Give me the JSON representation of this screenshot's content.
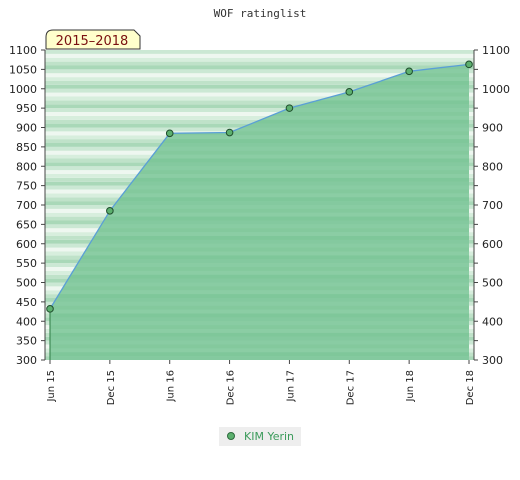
{
  "chart_data": {
    "type": "area",
    "title": "WOF ratinglist",
    "badge": "2015–2018",
    "categories": [
      "Jun 15",
      "Dec 15",
      "Jun 16",
      "Dec 16",
      "Jun 17",
      "Dec 17",
      "Jun 18",
      "Dec 18"
    ],
    "series": [
      {
        "name": "KIM Yerin",
        "values": [
          432,
          685,
          885,
          887,
          950,
          992,
          1045,
          1063
        ]
      }
    ],
    "ylim": [
      300,
      1100
    ],
    "yticks_left": [
      300,
      350,
      400,
      450,
      500,
      550,
      600,
      650,
      700,
      750,
      800,
      850,
      900,
      950,
      1000,
      1050,
      1100
    ],
    "yticks_right": [
      300,
      400,
      500,
      600,
      700,
      800,
      900,
      1000,
      1100
    ],
    "xlabel": "",
    "ylabel": "",
    "grid": "horizontal bands",
    "legend": "bottom-center",
    "colors": {
      "area_fill": "#7ec79a",
      "line": "#5a9fd6",
      "marker": "#5cb06e",
      "band_dark": "#9fd3b0",
      "band_light": "#f1f8f2",
      "badge_bg": "#ffffcc",
      "badge_text": "#7a1010",
      "legend_bg": "#eeeeee",
      "legend_text": "#3a9a5a"
    }
  }
}
